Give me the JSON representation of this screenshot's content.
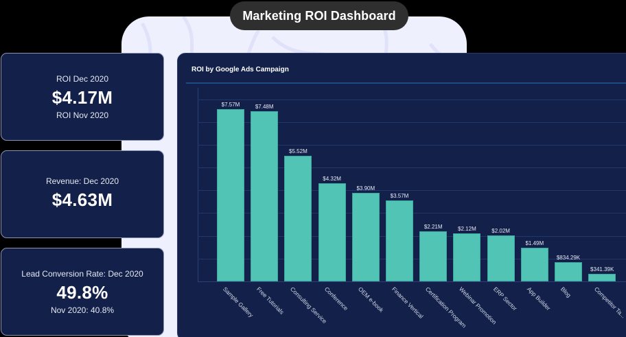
{
  "header": {
    "title": "Marketing ROI Dashboard"
  },
  "kpis": [
    {
      "label": "ROI Dec 2020",
      "value": "$4.17M",
      "sub": "ROI Nov 2020"
    },
    {
      "label": "Revenue: Dec 2020",
      "value": "$4.63M",
      "sub": ""
    },
    {
      "label": "Lead Conversion Rate: Dec 2020",
      "value": "49.8%",
      "sub": "Nov 2020: 40.8%"
    }
  ],
  "colors": {
    "card_bg": "#12204a",
    "bar": "#52c4b6",
    "title_pill": "#2f2f2f",
    "panel_bg": "#eef0fd"
  },
  "chart_data": {
    "type": "bar",
    "title": "ROI by Google Ads Campaign",
    "xlabel": "",
    "ylabel": "",
    "ylim": [
      0,
      8.5
    ],
    "grid": true,
    "gridlines": [
      1,
      2,
      3,
      4,
      5,
      6,
      7,
      8
    ],
    "categories": [
      "Sample Gallery",
      "Free Tutorials",
      "Consulting Service",
      "Conference",
      "OEM e-book",
      "Finance Vertical",
      "Certification Program",
      "Webinar Promotion",
      "ERP Sector",
      "App Builder",
      "Blog",
      "Competitor Ta..."
    ],
    "values": [
      7.57,
      7.48,
      5.52,
      4.32,
      3.9,
      3.57,
      2.21,
      2.12,
      2.02,
      1.49,
      0.83429,
      0.34139
    ],
    "value_labels": [
      "$7.57M",
      "$7.48M",
      "$5.52M",
      "$4.32M",
      "$3.90M",
      "$3.57M",
      "$2.21M",
      "$2.12M",
      "$2.02M",
      "$1.49M",
      "$834.29K",
      "$341.39K"
    ],
    "units": "USD millions"
  }
}
